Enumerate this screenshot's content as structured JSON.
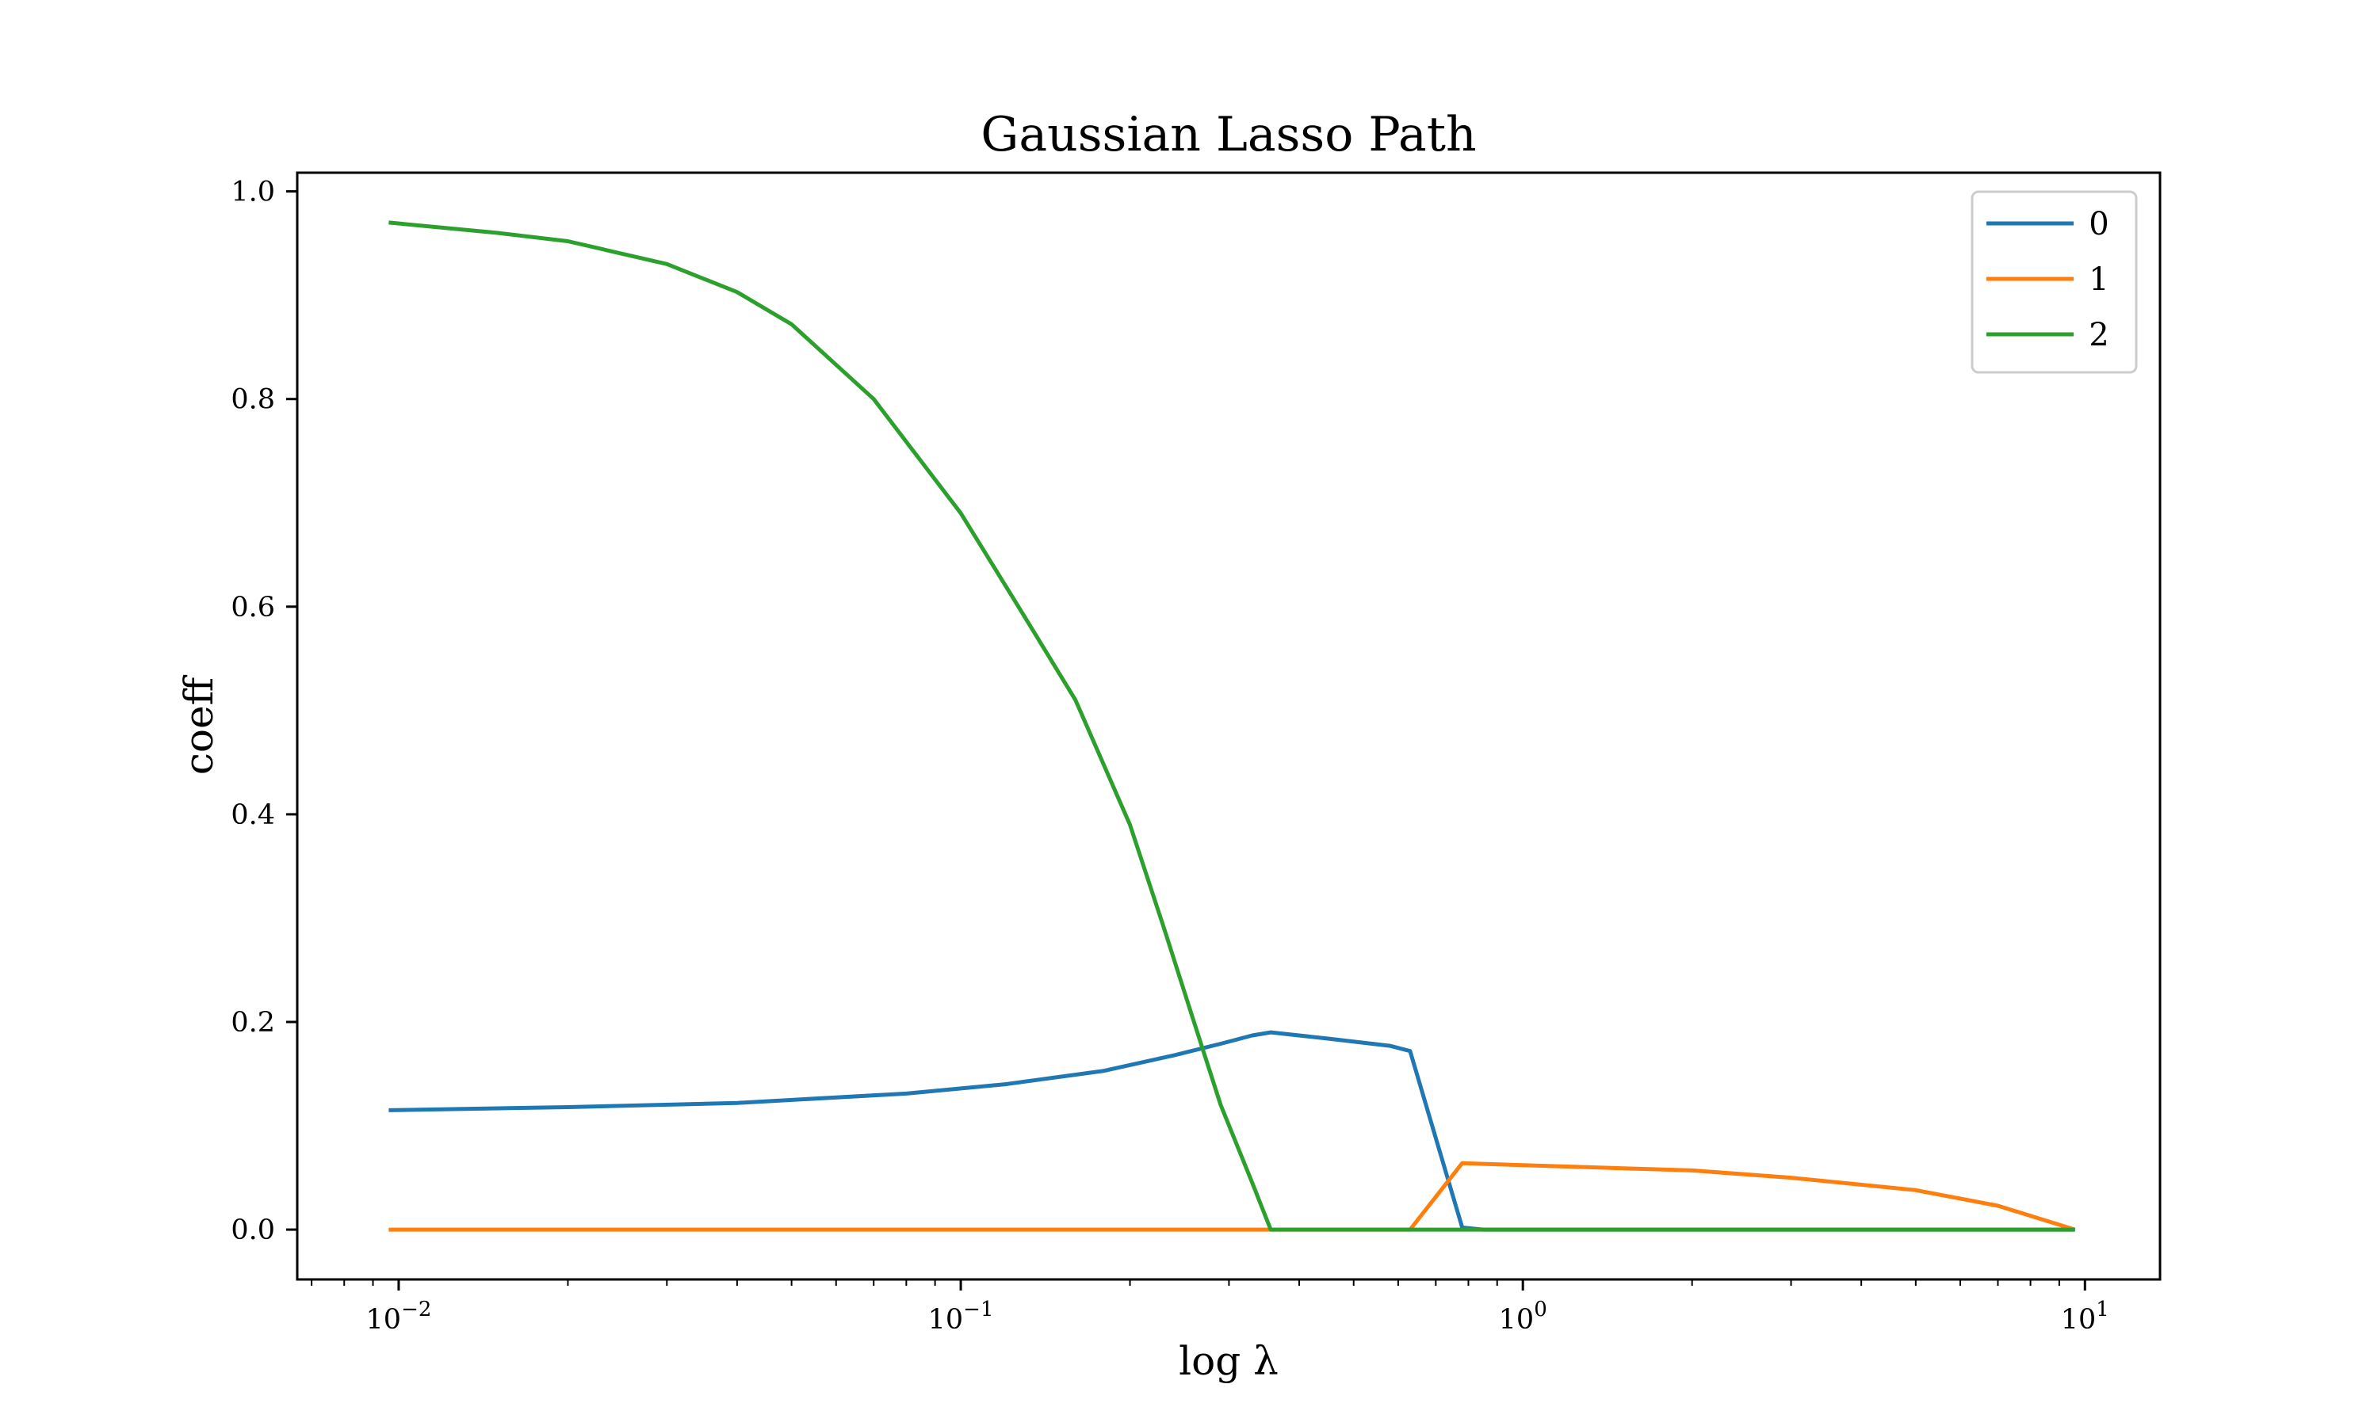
{
  "chart_data": {
    "type": "line",
    "title": "Gaussian Lasso Path",
    "xlabel": "log λ",
    "ylabel": "coeff",
    "xscale": "log",
    "xlim": [
      0.0066,
      13.6
    ],
    "ylim": [
      -0.048,
      1.018
    ],
    "yticks": [
      {
        "value": 0.0,
        "label": "0.0"
      },
      {
        "value": 0.2,
        "label": "0.2"
      },
      {
        "value": 0.4,
        "label": "0.4"
      },
      {
        "value": 0.6,
        "label": "0.6"
      },
      {
        "value": 0.8,
        "label": "0.8"
      },
      {
        "value": 1.0,
        "label": "1.0"
      }
    ],
    "xticks": [
      {
        "value": 0.01,
        "base": "10",
        "exp": "−2"
      },
      {
        "value": 0.1,
        "base": "10",
        "exp": "−1"
      },
      {
        "value": 1,
        "base": "10",
        "exp": "0"
      },
      {
        "value": 10,
        "base": "10",
        "exp": "1"
      }
    ],
    "grid": false,
    "legend_position": "top-right",
    "series": [
      {
        "name": "0",
        "color": "#1f77b4",
        "x": [
          0.0096,
          0.02,
          0.04,
          0.08,
          0.12,
          0.18,
          0.24,
          0.29,
          0.33,
          0.356,
          0.45,
          0.58,
          0.63,
          0.78,
          0.85,
          1.5,
          3,
          6,
          9.6
        ],
        "y": [
          0.115,
          0.118,
          0.122,
          0.131,
          0.14,
          0.153,
          0.168,
          0.179,
          0.187,
          0.19,
          0.184,
          0.177,
          0.172,
          0.002,
          0.0,
          0.0,
          0.0,
          0.0,
          0.0
        ]
      },
      {
        "name": "1",
        "color": "#ff7f0e",
        "x": [
          0.0096,
          0.1,
          0.5,
          0.63,
          0.78,
          1.0,
          2.0,
          3.0,
          5.0,
          7.0,
          9.6
        ],
        "y": [
          0.0,
          0.0,
          0.0,
          0.0,
          0.064,
          0.062,
          0.057,
          0.05,
          0.038,
          0.023,
          0.0
        ]
      },
      {
        "name": "2",
        "color": "#2ca02c",
        "x": [
          0.0096,
          0.015,
          0.02,
          0.03,
          0.04,
          0.05,
          0.07,
          0.1,
          0.13,
          0.16,
          0.2,
          0.23,
          0.26,
          0.29,
          0.33,
          0.356,
          0.5,
          1.0,
          3.0,
          9.6
        ],
        "y": [
          0.97,
          0.96,
          0.952,
          0.93,
          0.903,
          0.872,
          0.8,
          0.69,
          0.59,
          0.51,
          0.39,
          0.29,
          0.2,
          0.12,
          0.045,
          0.0,
          0.0,
          0.0,
          0.0,
          0.0
        ]
      }
    ]
  }
}
